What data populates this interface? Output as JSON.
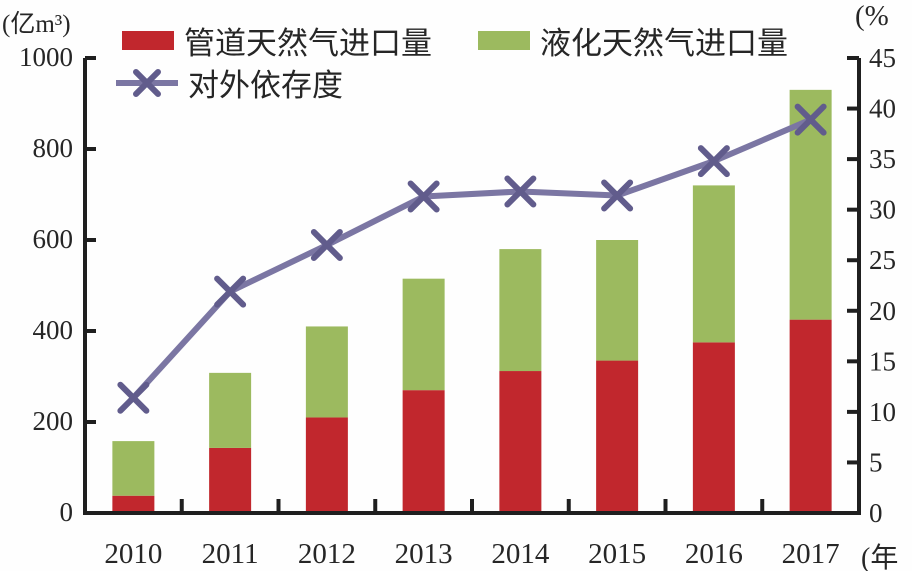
{
  "chart_data": {
    "type": "bar",
    "subtype": "stacked-bars-with-line-overlay",
    "title": "",
    "categories": [
      "2010",
      "2011",
      "2012",
      "2013",
      "2014",
      "2015",
      "2016",
      "2017"
    ],
    "series": [
      {
        "name": "管道天然气进口量",
        "type": "bar",
        "stacked": true,
        "axis": "left",
        "color": "#c1272d",
        "values": [
          38,
          143,
          210,
          270,
          312,
          335,
          375,
          425
        ]
      },
      {
        "name": "液化天然气进口量",
        "type": "bar",
        "stacked": true,
        "axis": "left",
        "color": "#9cba5f",
        "values": [
          120,
          165,
          200,
          245,
          268,
          265,
          345,
          505
        ]
      },
      {
        "name": "对外依存度",
        "type": "line",
        "marker": "x",
        "axis": "right",
        "color": "#7b76a3",
        "marker_color": "#615c8c",
        "values": [
          11.4,
          21.9,
          26.5,
          31.3,
          31.8,
          31.4,
          34.8,
          38.9
        ]
      }
    ],
    "left_axis": {
      "unit": "(亿m³)",
      "min": 0,
      "max": 1000,
      "ticks": [
        0,
        200,
        400,
        600,
        800,
        1000
      ]
    },
    "right_axis": {
      "unit": "(%",
      "min": 0,
      "max": 45,
      "ticks": [
        0,
        5,
        10,
        15,
        20,
        25,
        30,
        35,
        40,
        45
      ]
    },
    "x_axis": {
      "unit": "(年"
    },
    "legend_position": "top",
    "grid": false,
    "axis_color": "#1f1f1f",
    "text_color": "#262626"
  }
}
